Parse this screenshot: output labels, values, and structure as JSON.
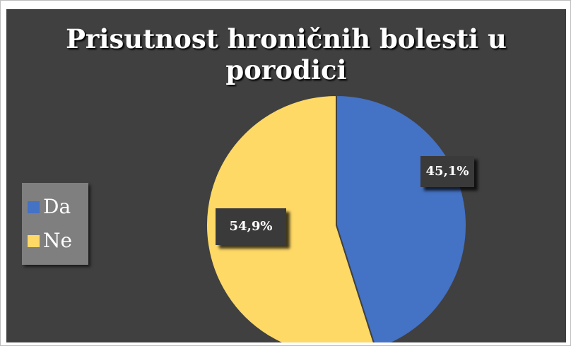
{
  "chart_data": {
    "type": "pie",
    "title": "Prisutnost hroničnih bolesti u porodici",
    "categories": [
      "Da",
      "Ne"
    ],
    "values": [
      45.1,
      54.9
    ],
    "data_labels": [
      "45,1%",
      "54,9%"
    ],
    "colors": [
      "#4472C4",
      "#FFD966"
    ],
    "legend_position": "left",
    "background": "#404040"
  }
}
